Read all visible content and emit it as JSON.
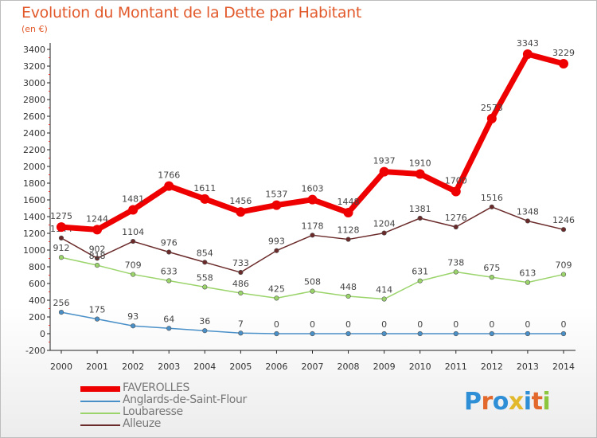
{
  "header": {
    "title": "Evolution du Montant de la Dette par Habitant",
    "unit": "(en €)"
  },
  "logo": {
    "letters": [
      "P",
      "r",
      "o",
      "x",
      "i",
      "t",
      "i"
    ],
    "colors": [
      "#2f8fd6",
      "#e2682c",
      "#2f8fd6",
      "#e2b82c",
      "#2f8fd6",
      "#e2682c",
      "#8cc63f"
    ]
  },
  "chart_data": {
    "type": "line",
    "x": [
      "2000",
      "2001",
      "2002",
      "2003",
      "2004",
      "2005",
      "2006",
      "2007",
      "2008",
      "2009",
      "2010",
      "2011",
      "2012",
      "2013",
      "2014"
    ],
    "ylim": [
      -200,
      3400
    ],
    "yticks": [
      "-200",
      "0",
      "200",
      "400",
      "600",
      "800",
      "1000",
      "1200",
      "1400",
      "1600",
      "1800",
      "2000",
      "2200",
      "2400",
      "2600",
      "2800",
      "3000",
      "3200",
      "3400"
    ],
    "grid": false,
    "legend_position": "bottom-left",
    "series": [
      {
        "name": "Alleuze",
        "color": "#6b2a2a",
        "values": [
          1144,
          902,
          1104,
          976,
          854,
          733,
          993,
          1178,
          1128,
          1204,
          1381,
          1276,
          1516,
          1348,
          1246
        ],
        "labels": [
          "1144",
          "902",
          "1104",
          "976",
          "854",
          "733",
          "993",
          "1178",
          "1128",
          "1204",
          "1381",
          "1276",
          "1516",
          "1348",
          "1246"
        ]
      },
      {
        "name": "Loubaresse",
        "color": "#9ad46a",
        "values": [
          912,
          818,
          709,
          633,
          558,
          486,
          425,
          508,
          448,
          414,
          631,
          738,
          675,
          613,
          709
        ],
        "labels": [
          "912",
          "818",
          "709",
          "633",
          "558",
          "486",
          "425",
          "508",
          "448",
          "414",
          "631",
          "738",
          "675",
          "613",
          "709"
        ]
      },
      {
        "name": "Anglards-de-Saint-Flour",
        "color": "#4a90c8",
        "values": [
          256,
          175,
          93,
          64,
          36,
          7,
          0,
          0,
          0,
          0,
          0,
          0,
          0,
          0,
          0
        ],
        "labels": [
          "256",
          "175",
          "93",
          "64",
          "36",
          "7",
          "0",
          "0",
          "0",
          "0",
          "0",
          "0",
          "0",
          "0",
          "0"
        ]
      },
      {
        "name": "FAVEROLLES",
        "color": "#ee0000",
        "values": [
          1275,
          1244,
          1481,
          1766,
          1611,
          1456,
          1537,
          1603,
          1448,
          1937,
          1910,
          1700,
          2573,
          3343,
          3229
        ],
        "labels": [
          "1275",
          "1244",
          "1481",
          "1766",
          "1611",
          "1456",
          "1537",
          "1603",
          "1448",
          "1937",
          "1910",
          "1700",
          "2573",
          "3343",
          "3229"
        ]
      }
    ]
  }
}
